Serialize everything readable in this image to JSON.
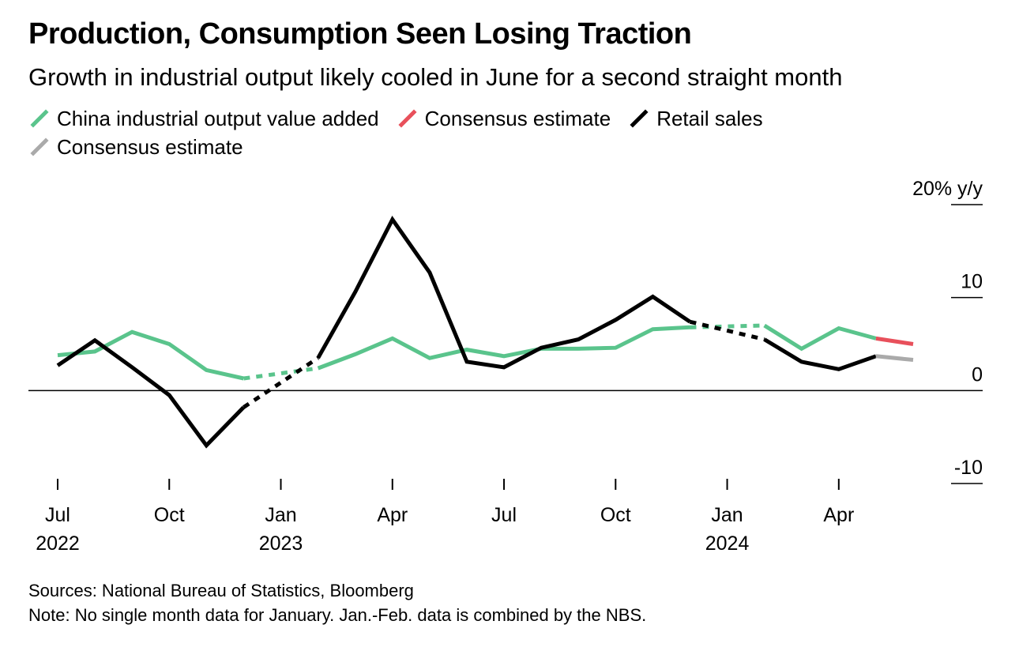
{
  "title": "Production, Consumption Seen Losing Traction",
  "subtitle": "Growth in industrial output likely cooled in June for a second straight month",
  "legend": [
    {
      "label": "China industrial output value added",
      "color": "#5ac48c"
    },
    {
      "label": "Consensus estimate",
      "color": "#e8505b"
    },
    {
      "label": "Retail sales",
      "color": "#000000"
    },
    {
      "label": "Consensus estimate",
      "color": "#aaaaaa"
    }
  ],
  "footer": {
    "sources": "Sources: National Bureau of Statistics, Bloomberg",
    "note": "Note: No single month data for January. Jan.-Feb. data is combined by the NBS."
  },
  "chart_data": {
    "type": "line",
    "y_unit_label": "20% y/y",
    "ylim": [
      -10,
      20
    ],
    "yticks": [
      {
        "value": 20,
        "label": "20% y/y"
      },
      {
        "value": 10,
        "label": "10"
      },
      {
        "value": 0,
        "label": "0"
      },
      {
        "value": -10,
        "label": "-10"
      }
    ],
    "x_start": "2022-07",
    "x_end": "2024-06",
    "xticks": [
      {
        "month": "2022-07",
        "label": "Jul",
        "year": "2022"
      },
      {
        "month": "2022-10",
        "label": "Oct",
        "year": ""
      },
      {
        "month": "2023-01",
        "label": "Jan",
        "year": "2023"
      },
      {
        "month": "2023-04",
        "label": "Apr",
        "year": ""
      },
      {
        "month": "2023-07",
        "label": "Jul",
        "year": ""
      },
      {
        "month": "2023-10",
        "label": "Oct",
        "year": ""
      },
      {
        "month": "2024-01",
        "label": "Jan",
        "year": "2024"
      },
      {
        "month": "2024-04",
        "label": "Apr",
        "year": ""
      }
    ],
    "series": [
      {
        "name": "China industrial output value added",
        "color": "#5ac48c",
        "points": [
          {
            "x": "2022-07",
            "y": 3.8
          },
          {
            "x": "2022-08",
            "y": 4.2
          },
          {
            "x": "2022-09",
            "y": 6.3
          },
          {
            "x": "2022-10",
            "y": 5.0
          },
          {
            "x": "2022-11",
            "y": 2.2
          },
          {
            "x": "2022-12",
            "y": 1.3
          },
          {
            "x": "2023-02",
            "y": 2.4
          },
          {
            "x": "2023-03",
            "y": 3.9
          },
          {
            "x": "2023-04",
            "y": 5.6
          },
          {
            "x": "2023-05",
            "y": 3.5
          },
          {
            "x": "2023-06",
            "y": 4.4
          },
          {
            "x": "2023-07",
            "y": 3.7
          },
          {
            "x": "2023-08",
            "y": 4.5
          },
          {
            "x": "2023-09",
            "y": 4.5
          },
          {
            "x": "2023-10",
            "y": 4.6
          },
          {
            "x": "2023-11",
            "y": 6.6
          },
          {
            "x": "2023-12",
            "y": 6.8
          },
          {
            "x": "2024-02",
            "y": 7.0
          },
          {
            "x": "2024-03",
            "y": 4.5
          },
          {
            "x": "2024-04",
            "y": 6.7
          },
          {
            "x": "2024-05",
            "y": 5.6
          }
        ]
      },
      {
        "name": "Consensus estimate",
        "color": "#e8505b",
        "points": [
          {
            "x": "2024-05",
            "y": 5.6
          },
          {
            "x": "2024-06",
            "y": 5.0
          }
        ]
      },
      {
        "name": "Retail sales",
        "color": "#000000",
        "points": [
          {
            "x": "2022-07",
            "y": 2.7
          },
          {
            "x": "2022-08",
            "y": 5.4
          },
          {
            "x": "2022-09",
            "y": 2.5
          },
          {
            "x": "2022-10",
            "y": -0.5
          },
          {
            "x": "2022-11",
            "y": -5.9
          },
          {
            "x": "2022-12",
            "y": -1.8
          },
          {
            "x": "2023-02",
            "y": 3.5
          },
          {
            "x": "2023-03",
            "y": 10.6
          },
          {
            "x": "2023-04",
            "y": 18.4
          },
          {
            "x": "2023-05",
            "y": 12.7
          },
          {
            "x": "2023-06",
            "y": 3.1
          },
          {
            "x": "2023-07",
            "y": 2.5
          },
          {
            "x": "2023-08",
            "y": 4.6
          },
          {
            "x": "2023-09",
            "y": 5.5
          },
          {
            "x": "2023-10",
            "y": 7.6
          },
          {
            "x": "2023-11",
            "y": 10.1
          },
          {
            "x": "2023-12",
            "y": 7.4
          },
          {
            "x": "2024-02",
            "y": 5.5
          },
          {
            "x": "2024-03",
            "y": 3.1
          },
          {
            "x": "2024-04",
            "y": 2.3
          },
          {
            "x": "2024-05",
            "y": 3.7
          }
        ]
      },
      {
        "name": "Consensus estimate",
        "color": "#aaaaaa",
        "points": [
          {
            "x": "2024-05",
            "y": 3.7
          },
          {
            "x": "2024-06",
            "y": 3.3
          }
        ]
      }
    ]
  }
}
